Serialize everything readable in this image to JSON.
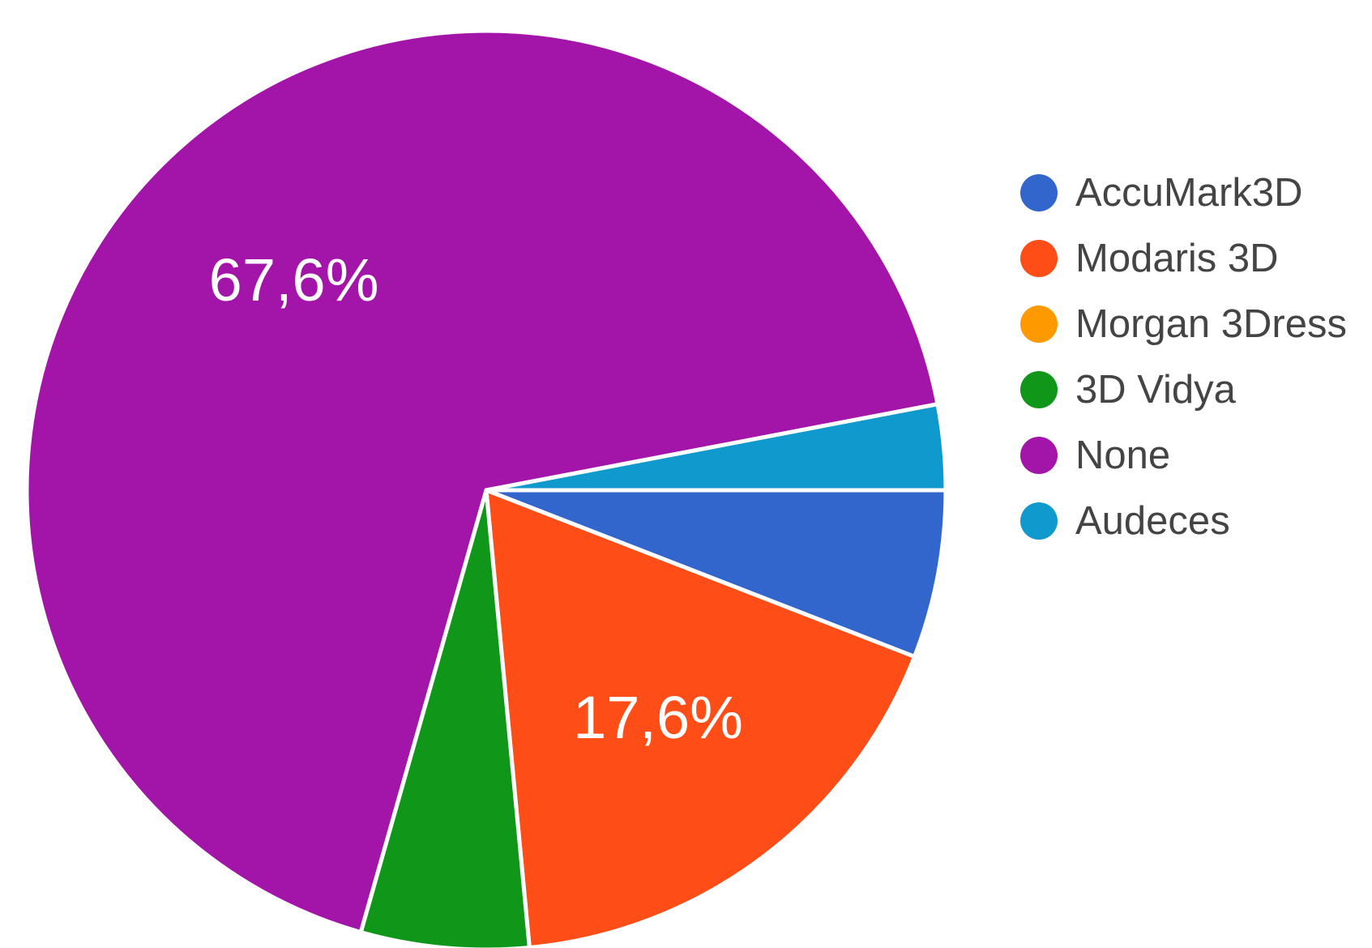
{
  "chart_data": {
    "type": "pie",
    "title": "",
    "legend_position": "right",
    "slices": [
      {
        "name": "AccuMark3D",
        "value": 5.9,
        "color": "#3366cc",
        "label": ""
      },
      {
        "name": "Modaris 3D",
        "value": 17.6,
        "color": "#ff4d17",
        "label": "17,6%"
      },
      {
        "name": "Morgan 3Dress",
        "value": 0,
        "color": "#ff9900",
        "label": ""
      },
      {
        "name": "3D Vidya",
        "value": 5.9,
        "color": "#109618",
        "label": ""
      },
      {
        "name": "None",
        "value": 67.6,
        "color": "#a314a8",
        "label": "67,6%"
      },
      {
        "name": "Audeces",
        "value": 3.0,
        "color": "#0f99cc",
        "label": ""
      }
    ]
  }
}
